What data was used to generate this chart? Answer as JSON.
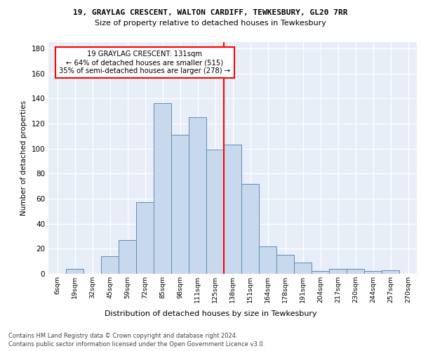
{
  "title1": "19, GRAYLAG CRESCENT, WALTON CARDIFF, TEWKESBURY, GL20 7RR",
  "title2": "Size of property relative to detached houses in Tewkesbury",
  "xlabel": "Distribution of detached houses by size in Tewkesbury",
  "ylabel": "Number of detached properties",
  "bin_labels": [
    "6sqm",
    "19sqm",
    "32sqm",
    "45sqm",
    "59sqm",
    "72sqm",
    "85sqm",
    "98sqm",
    "111sqm",
    "125sqm",
    "138sqm",
    "151sqm",
    "164sqm",
    "178sqm",
    "191sqm",
    "204sqm",
    "217sqm",
    "230sqm",
    "244sqm",
    "257sqm",
    "270sqm"
  ],
  "bar_heights": [
    0,
    4,
    0,
    14,
    27,
    57,
    136,
    111,
    125,
    99,
    103,
    72,
    22,
    15,
    9,
    2,
    4,
    4,
    2,
    3,
    0
  ],
  "bar_color": "#c9d9ed",
  "bar_edge_color": "#5b8db8",
  "vline_x": 9.5,
  "vline_color": "red",
  "annotation_text": "19 GRAYLAG CRESCENT: 131sqm\n← 64% of detached houses are smaller (515)\n35% of semi-detached houses are larger (278) →",
  "annotation_box_color": "red",
  "ylim": [
    0,
    185
  ],
  "yticks": [
    0,
    20,
    40,
    60,
    80,
    100,
    120,
    140,
    160,
    180
  ],
  "footer1": "Contains HM Land Registry data © Crown copyright and database right 2024.",
  "footer2": "Contains public sector information licensed under the Open Government Licence v3.0.",
  "bg_color": "#e8eef8",
  "grid_color": "white"
}
